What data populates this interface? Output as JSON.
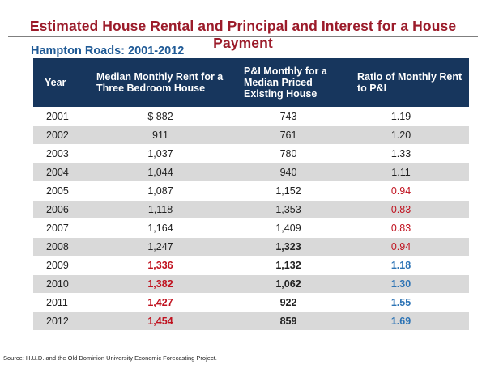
{
  "title": "Estimated House Rental and Principal and Interest for a House Payment",
  "subtitle": "Hampton Roads: 2001-2012",
  "table": {
    "headers": {
      "year": "Year",
      "rent": "Median Monthly Rent for a Three Bedroom House",
      "pi": "P&I Monthly for a Median Priced Existing House",
      "ratio": "Ratio of Monthly Rent to P&I"
    },
    "rows": [
      {
        "year": "2001",
        "rent": "$ 882",
        "pi": "743",
        "ratio": "1.19",
        "rent_style": "",
        "pi_style": "",
        "ratio_style": ""
      },
      {
        "year": "2002",
        "rent": "911",
        "pi": "761",
        "ratio": "1.20",
        "rent_style": "",
        "pi_style": "",
        "ratio_style": ""
      },
      {
        "year": "2003",
        "rent": "1,037",
        "pi": "780",
        "ratio": "1.33",
        "rent_style": "",
        "pi_style": "",
        "ratio_style": ""
      },
      {
        "year": "2004",
        "rent": "1,044",
        "pi": "940",
        "ratio": "1.11",
        "rent_style": "",
        "pi_style": "",
        "ratio_style": ""
      },
      {
        "year": "2005",
        "rent": "1,087",
        "pi": "1,152",
        "ratio": "0.94",
        "rent_style": "",
        "pi_style": "",
        "ratio_style": "red"
      },
      {
        "year": "2006",
        "rent": "1,118",
        "pi": "1,353",
        "ratio": "0.83",
        "rent_style": "",
        "pi_style": "",
        "ratio_style": "red"
      },
      {
        "year": "2007",
        "rent": "1,164",
        "pi": "1,409",
        "ratio": "0.83",
        "rent_style": "",
        "pi_style": "",
        "ratio_style": "red"
      },
      {
        "year": "2008",
        "rent": "1,247",
        "pi": "1,323",
        "ratio": "0.94",
        "rent_style": "",
        "pi_style": "bold",
        "ratio_style": "red"
      },
      {
        "year": "2009",
        "rent": "1,336",
        "pi": "1,132",
        "ratio": "1.18",
        "rent_style": "red bold",
        "pi_style": "bold",
        "ratio_style": "blue bold"
      },
      {
        "year": "2010",
        "rent": "1,382",
        "pi": "1,062",
        "ratio": "1.30",
        "rent_style": "red bold",
        "pi_style": "bold",
        "ratio_style": "blue bold"
      },
      {
        "year": "2011",
        "rent": "1,427",
        "pi": "922",
        "ratio": "1.55",
        "rent_style": "red bold",
        "pi_style": "bold",
        "ratio_style": "blue bold"
      },
      {
        "year": "2012",
        "rent": "1,454",
        "pi": "859",
        "ratio": "1.69",
        "rent_style": "red bold",
        "pi_style": "bold",
        "ratio_style": "blue bold"
      }
    ]
  },
  "colors": {
    "title": "#9b1b2a",
    "subtitle": "#1f5a96",
    "header_bg": "#17365d",
    "highlight_red": "#c0121f",
    "highlight_blue": "#2e74b5"
  },
  "source": "Source: H.U.D. and the Old Dominion University Economic Forecasting Project."
}
